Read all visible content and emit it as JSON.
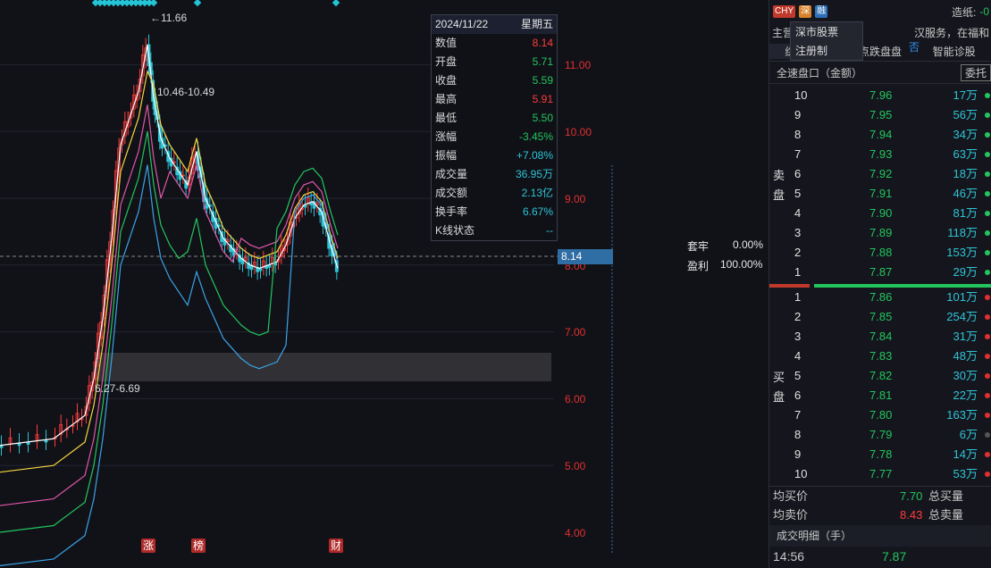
{
  "tooltip": {
    "date": "2024/11/22",
    "weekday": "星期五",
    "rows": [
      {
        "k": "数值",
        "v": "8.14",
        "c": "red"
      },
      {
        "k": "开盘",
        "v": "5.71",
        "c": "green"
      },
      {
        "k": "收盘",
        "v": "5.59",
        "c": "green"
      },
      {
        "k": "最高",
        "v": "5.91",
        "c": "red"
      },
      {
        "k": "最低",
        "v": "5.50",
        "c": "green"
      },
      {
        "k": "涨幅",
        "v": "-3.45%",
        "c": "green"
      },
      {
        "k": "振幅",
        "v": "+7.08%",
        "c": "cyan"
      },
      {
        "k": "成交量",
        "v": "36.95万",
        "c": "cyan"
      },
      {
        "k": "成交额",
        "v": "2.13亿",
        "c": "cyan"
      },
      {
        "k": "换手率",
        "v": "6.67%",
        "c": "cyan"
      },
      {
        "k": "K线状态",
        "v": "--",
        "c": "cyan"
      }
    ]
  },
  "chart_data": {
    "type": "candlestick",
    "price_axis": [
      "11.00",
      "10.00",
      "9.00",
      "8.00",
      "7.00",
      "6.00",
      "5.00",
      "4.00"
    ],
    "high_label": "11.66",
    "range_label_1": "10.46-10.49",
    "range_label_2": "6.27-6.69",
    "current_price": "8.14",
    "taolao_label": "套牢",
    "taolao_value": "0.00%",
    "profit_label": "盈利",
    "profit_value": "100.00%",
    "markers": [
      "涨",
      "榜",
      "财"
    ],
    "ylim": [
      3.8,
      11.8
    ]
  },
  "panel": {
    "badges": [
      {
        "t": "CHY",
        "c": "#c0392b"
      },
      {
        "t": "深",
        "c": "#d9822b"
      },
      {
        "t": "融",
        "c": "#2d6fb7"
      }
    ],
    "label_right": "造纸:",
    "label_right_val": "-0",
    "line2_left": "主营",
    "line2_right": "汉服务，在福和",
    "line2_extra": "否",
    "popup_items": [
      "深市股票",
      "注册制"
    ],
    "tabs": [
      "综合盘盘",
      "点跌盘盘",
      "智能诊股"
    ],
    "subheader": "全速盘口（金额）",
    "subheader_btn": "委托",
    "sell_label": "卖盘",
    "buy_label": "买盘",
    "sells": [
      {
        "l": "10",
        "p": "7.96",
        "v": "17万"
      },
      {
        "l": "9",
        "p": "7.95",
        "v": "56万"
      },
      {
        "l": "8",
        "p": "7.94",
        "v": "34万"
      },
      {
        "l": "7",
        "p": "7.93",
        "v": "63万"
      },
      {
        "l": "6",
        "p": "7.92",
        "v": "18万"
      },
      {
        "l": "5",
        "p": "7.91",
        "v": "46万"
      },
      {
        "l": "4",
        "p": "7.90",
        "v": "81万"
      },
      {
        "l": "3",
        "p": "7.89",
        "v": "118万"
      },
      {
        "l": "2",
        "p": "7.88",
        "v": "153万"
      },
      {
        "l": "1",
        "p": "7.87",
        "v": "29万"
      }
    ],
    "buys": [
      {
        "l": "1",
        "p": "7.86",
        "v": "101万"
      },
      {
        "l": "2",
        "p": "7.85",
        "v": "254万"
      },
      {
        "l": "3",
        "p": "7.84",
        "v": "31万"
      },
      {
        "l": "4",
        "p": "7.83",
        "v": "48万"
      },
      {
        "l": "5",
        "p": "7.82",
        "v": "30万"
      },
      {
        "l": "6",
        "p": "7.81",
        "v": "22万"
      },
      {
        "l": "7",
        "p": "7.80",
        "v": "163万"
      },
      {
        "l": "8",
        "p": "7.79",
        "v": "6万"
      },
      {
        "l": "9",
        "p": "7.78",
        "v": "14万"
      },
      {
        "l": "10",
        "p": "7.77",
        "v": "53万"
      }
    ],
    "avg_buy_label": "均买价",
    "avg_buy_val": "7.70",
    "total_buy_label": "总买量",
    "avg_sell_label": "均卖价",
    "avg_sell_val": "8.43",
    "total_sell_label": "总卖量",
    "detail_title": "成交明细（手）",
    "detail_time": "14:56",
    "detail_price": "7.87"
  }
}
